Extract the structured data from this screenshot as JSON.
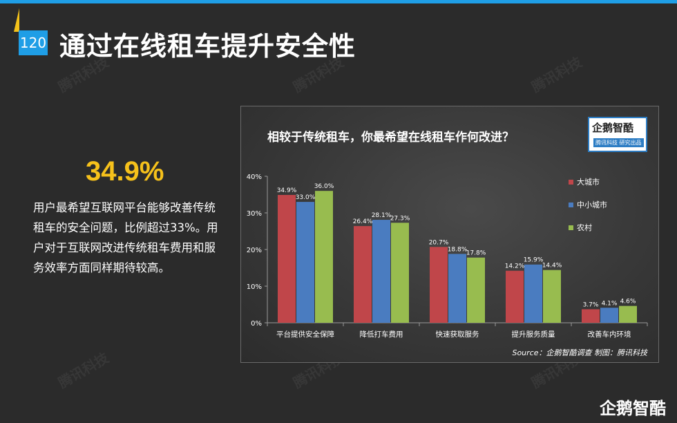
{
  "page_number": "120",
  "page_title": "通过在线租车提升安全性",
  "highlight_value": "34.9%",
  "description": "用户最希望互联网平台能够改善传统租车的安全问题，比例超过33%。用户对于互联网改进传统租车费用和服务效率方面同样期待较高。",
  "watermark_text": "腾讯科技",
  "brand_logo": "企鹅智酷",
  "chart_logo": {
    "main": "企鹅智酷",
    "sub": "腾讯科技 研究出品"
  },
  "colors": {
    "accent_blue": "#1f9ee6",
    "accent_yellow": "#f6c11b",
    "series_red": "#c0464a",
    "series_blue": "#4a7cc0",
    "series_green": "#98bc4f"
  },
  "chart_data": {
    "type": "bar",
    "title": "相较于传统租车，你最希望在线租车作何改进？",
    "categories": [
      "平台提供安全保障",
      "降低打车费用",
      "快速获取服务",
      "提升服务质量",
      "改善车内环境"
    ],
    "series": [
      {
        "name": "大城市",
        "values": [
          34.9,
          26.4,
          20.7,
          14.2,
          3.7
        ],
        "labels": [
          "34.9%",
          "26.4%",
          "20.7%",
          "14.2%",
          "3.7%"
        ],
        "color": "#c0464a"
      },
      {
        "name": "中小城市",
        "values": [
          33.0,
          28.1,
          18.8,
          15.9,
          4.1
        ],
        "labels": [
          "33.0%",
          "28.1%",
          "18.8%",
          "15.9%",
          "4.1%"
        ],
        "color": "#4a7cc0"
      },
      {
        "name": "农村",
        "values": [
          36.0,
          27.3,
          17.8,
          14.4,
          4.6
        ],
        "labels": [
          "36.0%",
          "27.3%",
          "17.8%",
          "14.4%",
          "4.6%"
        ],
        "color": "#98bc4f"
      }
    ],
    "ylim": [
      0,
      40
    ],
    "yticks": [
      "0%",
      "10%",
      "20%",
      "30%",
      "40%"
    ],
    "grid": false,
    "legend": "right",
    "source": "Source：企鹅智酷调查  制图：腾讯科技"
  }
}
